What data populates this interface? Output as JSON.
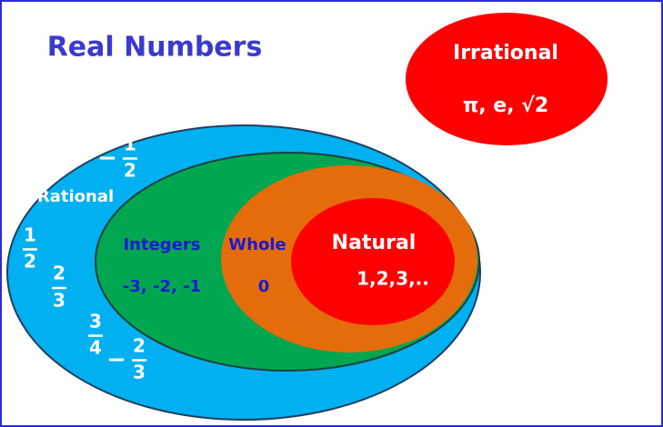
{
  "title": "Real Numbers",
  "irrational": {
    "label": "Irrational",
    "examples": "π, e, √2"
  },
  "rational": {
    "label": "Rational",
    "fractions": [
      {
        "sign": "−",
        "numerator": "1",
        "denominator": "2"
      },
      {
        "numerator": "1",
        "denominator": "2"
      },
      {
        "numerator": "2",
        "denominator": "3"
      },
      {
        "numerator": "3",
        "denominator": "4"
      },
      {
        "sign": "−",
        "numerator": "2",
        "denominator": "3"
      }
    ]
  },
  "integers": {
    "label": "Integers",
    "examples": "-3, -2, -1"
  },
  "whole": {
    "label": "Whole",
    "examples": "0"
  },
  "natural": {
    "label": "Natural",
    "examples": "1,2,3,.."
  }
}
